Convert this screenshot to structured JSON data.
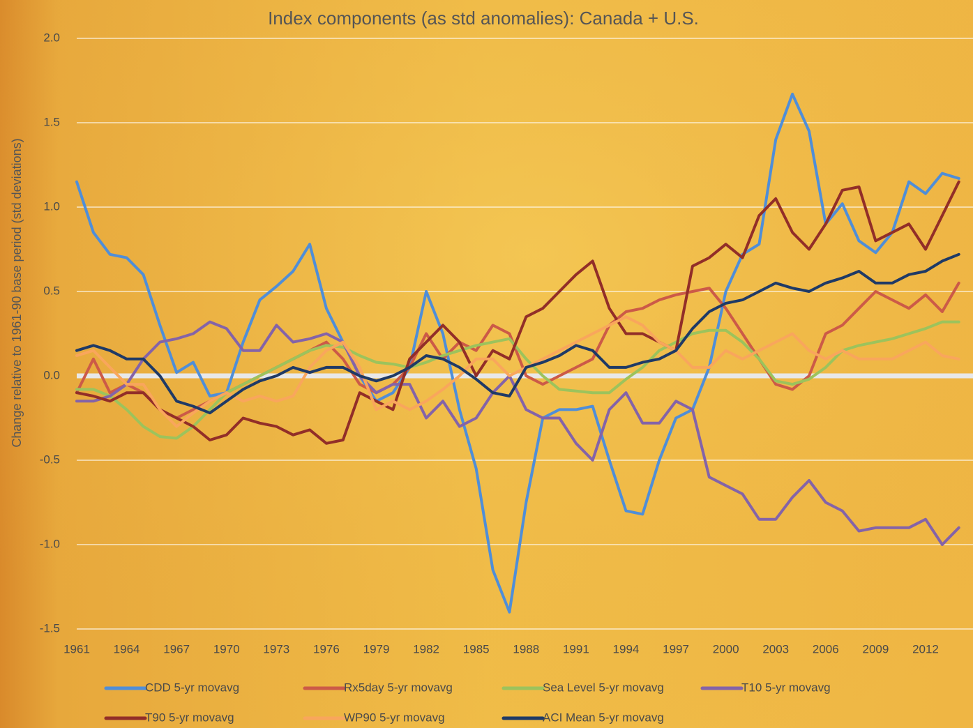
{
  "chart_data": {
    "type": "line",
    "title": "Index components (as std anomalies): Canada + U.S.",
    "y_label": "Change relative to 1961-90 base period (std deviations)",
    "x": [
      1961,
      1962,
      1963,
      1964,
      1965,
      1966,
      1967,
      1968,
      1969,
      1970,
      1971,
      1972,
      1973,
      1974,
      1975,
      1976,
      1977,
      1978,
      1979,
      1980,
      1981,
      1982,
      1983,
      1984,
      1985,
      1986,
      1987,
      1988,
      1989,
      1990,
      1991,
      1992,
      1993,
      1994,
      1995,
      1996,
      1997,
      1998,
      1999,
      2000,
      2001,
      2002,
      2003,
      2004,
      2005,
      2006,
      2007,
      2008,
      2009,
      2010,
      2011,
      2012,
      2013,
      2014
    ],
    "xlim": [
      1961,
      2014.85
    ],
    "xticks": [
      1961,
      1964,
      1967,
      1970,
      1973,
      1976,
      1979,
      1982,
      1985,
      1988,
      1991,
      1994,
      1997,
      2000,
      2003,
      2006,
      2009,
      2012
    ],
    "ylim": [
      -1.5,
      2.0
    ],
    "yticks": [
      {
        "value": -1.5,
        "label": "-1.5"
      },
      {
        "value": -1.0,
        "label": "-1.0"
      },
      {
        "value": -0.5,
        "label": "-0.5"
      },
      {
        "value": 0,
        "label": "0.0"
      },
      {
        "value": 0.5,
        "label": "0.5"
      },
      {
        "value": 1.0,
        "label": "1.0"
      },
      {
        "value": 1.5,
        "label": "1.5"
      },
      {
        "value": 2.0,
        "label": "2.0"
      }
    ],
    "grid": true,
    "series": [
      {
        "name": "CDD 5-yr movavg",
        "color": "#4f8ed8",
        "values": [
          1.15,
          0.85,
          0.72,
          0.7,
          0.6,
          0.3,
          0.02,
          0.08,
          -0.12,
          -0.1,
          0.2,
          0.45,
          0.53,
          0.62,
          0.78,
          0.4,
          0.2,
          0.0,
          -0.15,
          -0.1,
          0.05,
          0.5,
          0.25,
          -0.2,
          -0.55,
          -1.15,
          -1.4,
          -0.75,
          -0.25,
          -0.2,
          -0.2,
          -0.18,
          -0.5,
          -0.8,
          -0.82,
          -0.5,
          -0.25,
          -0.2,
          0.05,
          0.5,
          0.72,
          0.78,
          1.4,
          1.67,
          1.45,
          0.9,
          1.02,
          0.8,
          0.73,
          0.85,
          1.15,
          1.08,
          1.2,
          1.17
        ]
      },
      {
        "name": "Rx5day 5-yr movavg",
        "color": "#cc5a47",
        "values": [
          -0.1,
          0.1,
          -0.1,
          -0.05,
          -0.1,
          -0.2,
          -0.25,
          -0.2,
          -0.15,
          -0.1,
          -0.05,
          0.0,
          0.05,
          0.1,
          0.15,
          0.2,
          0.1,
          -0.05,
          -0.1,
          -0.05,
          0.05,
          0.25,
          0.1,
          0.2,
          0.15,
          0.3,
          0.25,
          0.0,
          -0.05,
          0.0,
          0.05,
          0.1,
          0.3,
          0.38,
          0.4,
          0.45,
          0.48,
          0.5,
          0.52,
          0.4,
          0.25,
          0.1,
          -0.05,
          -0.08,
          0.0,
          0.25,
          0.3,
          0.4,
          0.5,
          0.45,
          0.4,
          0.48,
          0.38,
          0.55
        ]
      },
      {
        "name": "Sea Level 5-yr movavg",
        "color": "#9cc35c",
        "values": [
          -0.08,
          -0.08,
          -0.12,
          -0.2,
          -0.3,
          -0.36,
          -0.37,
          -0.3,
          -0.2,
          -0.1,
          -0.05,
          0.0,
          0.05,
          0.1,
          0.15,
          0.18,
          0.17,
          0.12,
          0.08,
          0.07,
          0.05,
          0.08,
          0.12,
          0.15,
          0.18,
          0.2,
          0.22,
          0.1,
          0.0,
          -0.08,
          -0.09,
          -0.1,
          -0.1,
          -0.02,
          0.05,
          0.15,
          0.2,
          0.25,
          0.27,
          0.27,
          0.2,
          0.1,
          -0.03,
          -0.05,
          -0.02,
          0.05,
          0.15,
          0.18,
          0.2,
          0.22,
          0.25,
          0.28,
          0.32,
          0.32
        ]
      },
      {
        "name": "T10 5-yr movavg",
        "color": "#8463a8",
        "values": [
          -0.15,
          -0.15,
          -0.12,
          -0.05,
          0.1,
          0.2,
          0.22,
          0.25,
          0.32,
          0.28,
          0.15,
          0.15,
          0.3,
          0.2,
          0.22,
          0.25,
          0.2,
          0.0,
          -0.1,
          -0.05,
          -0.05,
          -0.25,
          -0.15,
          -0.3,
          -0.25,
          -0.1,
          0.0,
          -0.2,
          -0.25,
          -0.25,
          -0.4,
          -0.5,
          -0.2,
          -0.1,
          -0.28,
          -0.28,
          -0.15,
          -0.2,
          -0.6,
          -0.65,
          -0.7,
          -0.85,
          -0.85,
          -0.72,
          -0.62,
          -0.75,
          -0.8,
          -0.92,
          -0.9,
          -0.9,
          -0.9,
          -0.85,
          -1.0,
          -0.9
        ]
      },
      {
        "name": "T90 5-yr movavg",
        "color": "#922e28",
        "values": [
          -0.1,
          -0.12,
          -0.15,
          -0.1,
          -0.1,
          -0.2,
          -0.25,
          -0.3,
          -0.38,
          -0.35,
          -0.25,
          -0.28,
          -0.3,
          -0.35,
          -0.32,
          -0.4,
          -0.38,
          -0.1,
          -0.15,
          -0.2,
          0.1,
          0.2,
          0.3,
          0.2,
          0.0,
          0.15,
          0.1,
          0.35,
          0.4,
          0.5,
          0.6,
          0.68,
          0.4,
          0.25,
          0.25,
          0.2,
          0.15,
          0.65,
          0.7,
          0.78,
          0.7,
          0.95,
          1.05,
          0.85,
          0.75,
          0.9,
          1.1,
          1.12,
          0.8,
          0.85,
          0.9,
          0.75,
          0.95,
          1.15
        ]
      },
      {
        "name": "WP90 5-yr movavg",
        "color": "#f9a65c",
        "values": [
          0.12,
          0.15,
          0.05,
          -0.05,
          -0.05,
          -0.2,
          -0.3,
          -0.22,
          -0.15,
          -0.1,
          -0.15,
          -0.12,
          -0.15,
          -0.12,
          0.05,
          0.15,
          0.2,
          0.05,
          -0.2,
          -0.15,
          -0.2,
          -0.15,
          -0.08,
          0.0,
          0.1,
          0.1,
          0.0,
          0.05,
          0.1,
          0.15,
          0.2,
          0.25,
          0.3,
          0.35,
          0.3,
          0.2,
          0.15,
          0.05,
          0.05,
          0.15,
          0.1,
          0.15,
          0.2,
          0.25,
          0.15,
          0.1,
          0.15,
          0.1,
          0.1,
          0.1,
          0.15,
          0.2,
          0.12,
          0.1
        ]
      },
      {
        "name": "ACI Mean 5-yr movavg",
        "color": "#1f3a66",
        "values": [
          0.15,
          0.18,
          0.15,
          0.1,
          0.1,
          0.0,
          -0.15,
          -0.18,
          -0.22,
          -0.15,
          -0.08,
          -0.03,
          0.0,
          0.05,
          0.02,
          0.05,
          0.05,
          0.0,
          -0.03,
          0.0,
          0.05,
          0.12,
          0.1,
          0.05,
          -0.02,
          -0.1,
          -0.12,
          0.05,
          0.08,
          0.12,
          0.18,
          0.15,
          0.05,
          0.05,
          0.08,
          0.1,
          0.15,
          0.28,
          0.38,
          0.43,
          0.45,
          0.5,
          0.55,
          0.52,
          0.5,
          0.55,
          0.58,
          0.62,
          0.55,
          0.55,
          0.6,
          0.62,
          0.68,
          0.72
        ]
      }
    ]
  }
}
